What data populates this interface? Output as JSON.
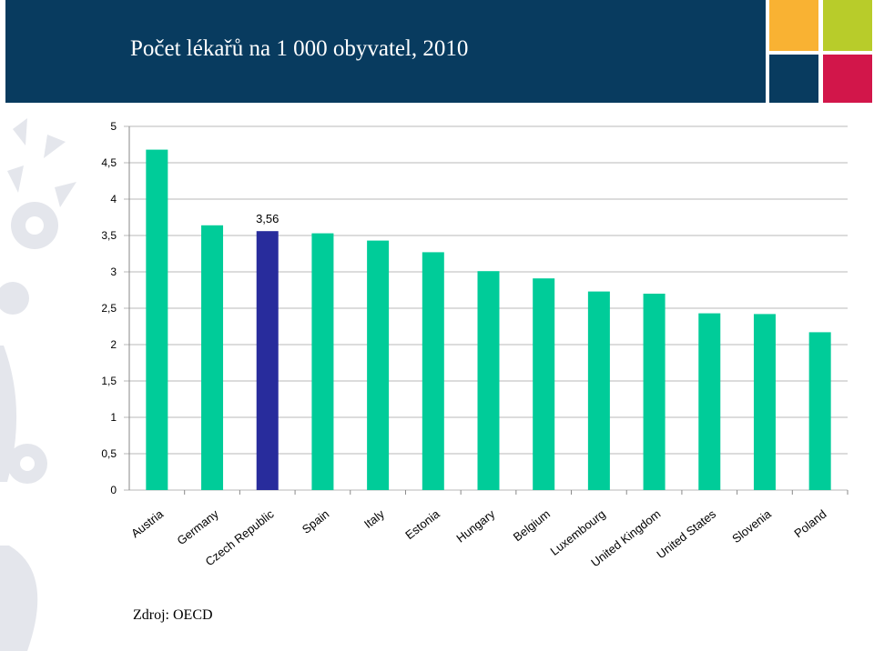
{
  "slide": {
    "title": "Počet lékařů na 1 000 obyvatel, 2010",
    "source": "Zdroj: OECD"
  },
  "colors": {
    "header": "#083b5f",
    "bar": "#00cc99",
    "highlight": "#282c9c",
    "tiles": [
      "#f9b233",
      "#b8cc2a",
      "#083b5f",
      "#d2164a"
    ]
  },
  "chart_data": {
    "type": "bar",
    "title": "",
    "xlabel": "",
    "ylabel": "",
    "ylim": [
      0,
      5
    ],
    "yticks": [
      "0",
      "0,5",
      "1",
      "1,5",
      "2",
      "2,5",
      "3",
      "3,5",
      "4",
      "4,5",
      "5"
    ],
    "grid": "horizontal",
    "categories": [
      "Austria",
      "Germany",
      "Czech Republic",
      "Spain",
      "Italy",
      "Estonia",
      "Hungary",
      "Belgium",
      "Luxembourg",
      "United Kingdom",
      "United States",
      "Slovenia",
      "Poland"
    ],
    "values": [
      4.68,
      3.64,
      3.56,
      3.53,
      3.43,
      3.27,
      3.01,
      2.91,
      2.73,
      2.7,
      2.43,
      2.42,
      2.17
    ],
    "highlight_index": 2,
    "data_labels": [
      {
        "index": 2,
        "text": "3,56"
      }
    ]
  }
}
